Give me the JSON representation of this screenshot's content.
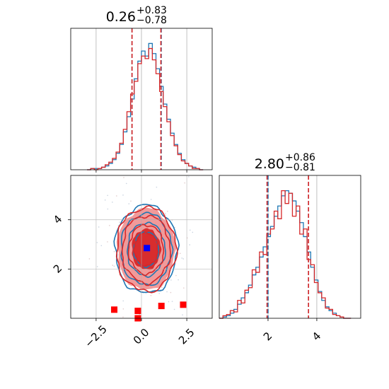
{
  "chart_data": {
    "type": "corner",
    "series": [
      {
        "name": "",
        "color": "#1f77b4"
      },
      {
        "name": "",
        "color": "#d62728"
      }
    ],
    "panels": [
      {
        "id": "hist-x",
        "type": "histogram",
        "title_value": "0.26",
        "title_plus": "+0.83",
        "title_minus": "−0.78",
        "xlim": [
          -3.9,
          3.9
        ],
        "ylim": [
          0,
          1.12
        ],
        "bins_x": [
          -3.0,
          -2.8,
          -2.6,
          -2.4,
          -2.2,
          -2.0,
          -1.8,
          -1.6,
          -1.4,
          -1.2,
          -1.0,
          -0.8,
          -0.6,
          -0.4,
          -0.2,
          0.0,
          0.2,
          0.4,
          0.6,
          0.8,
          1.0,
          1.2,
          1.4,
          1.6,
          1.8,
          2.0,
          2.2,
          2.4,
          2.6,
          2.8,
          3.0,
          3.2,
          3.4
        ],
        "blue_values": [
          0.0,
          0.01,
          0.01,
          0.01,
          0.02,
          0.03,
          0.05,
          0.08,
          0.13,
          0.2,
          0.3,
          0.42,
          0.56,
          0.72,
          0.86,
          0.94,
          0.9,
          1.0,
          0.92,
          0.8,
          0.66,
          0.52,
          0.4,
          0.29,
          0.2,
          0.13,
          0.08,
          0.05,
          0.03,
          0.02,
          0.01,
          0.0
        ],
        "red_values": [
          0.0,
          0.01,
          0.0,
          0.01,
          0.02,
          0.04,
          0.06,
          0.09,
          0.14,
          0.21,
          0.32,
          0.46,
          0.6,
          0.7,
          0.84,
          0.9,
          0.88,
          0.96,
          0.87,
          0.76,
          0.62,
          0.5,
          0.38,
          0.27,
          0.19,
          0.12,
          0.07,
          0.05,
          0.03,
          0.01,
          0.01,
          0.0
        ],
        "quantiles_blue": [
          -0.52,
          1.09
        ],
        "quantiles_red": [
          -0.52,
          1.07
        ]
      },
      {
        "id": "hist-y",
        "type": "histogram",
        "title_value": "2.80",
        "title_plus": "+0.86",
        "title_minus": "−0.81",
        "xlim": [
          0.0,
          5.8
        ],
        "ylim": [
          0,
          1.12
        ],
        "bins_x": [
          0.0,
          0.15,
          0.3,
          0.45,
          0.6,
          0.75,
          0.9,
          1.05,
          1.2,
          1.35,
          1.5,
          1.65,
          1.8,
          1.95,
          2.1,
          2.25,
          2.4,
          2.55,
          2.7,
          2.85,
          3.0,
          3.15,
          3.3,
          3.45,
          3.6,
          3.75,
          3.9,
          4.05,
          4.2,
          4.35,
          4.5,
          4.65,
          4.8,
          4.95,
          5.1,
          5.25,
          5.4
        ],
        "blue_values": [
          0.0,
          0.01,
          0.02,
          0.04,
          0.07,
          0.11,
          0.16,
          0.2,
          0.26,
          0.34,
          0.4,
          0.48,
          0.56,
          0.64,
          0.72,
          0.8,
          0.88,
          0.96,
          1.0,
          0.98,
          0.92,
          0.84,
          0.75,
          0.64,
          0.52,
          0.4,
          0.3,
          0.21,
          0.14,
          0.09,
          0.06,
          0.04,
          0.02,
          0.01,
          0.0,
          0.0
        ],
        "red_values": [
          0.0,
          0.02,
          0.03,
          0.06,
          0.05,
          0.14,
          0.12,
          0.22,
          0.24,
          0.38,
          0.36,
          0.52,
          0.5,
          0.66,
          0.7,
          0.84,
          0.78,
          1.0,
          0.9,
          0.98,
          0.8,
          0.88,
          0.66,
          0.7,
          0.46,
          0.42,
          0.28,
          0.2,
          0.16,
          0.08,
          0.07,
          0.03,
          0.02,
          0.01,
          0.0,
          0.0
        ],
        "quantiles_blue": [
          2.0,
          3.66
        ],
        "quantiles_red": [
          1.96,
          3.66
        ]
      },
      {
        "id": "scatter-xy",
        "type": "contour",
        "xlim": [
          -3.9,
          3.9
        ],
        "ylim": [
          0.0,
          5.8
        ],
        "center": [
          0.26,
          2.8
        ],
        "sigma": [
          0.8,
          0.83
        ],
        "blue_marker": [
          0.3,
          2.85
        ],
        "red_markers": [
          [
            -1.5,
            0.35
          ],
          [
            -0.2,
            0.3
          ],
          [
            1.1,
            0.5
          ],
          [
            2.3,
            0.55
          ],
          [
            -0.2,
            0.0
          ]
        ]
      }
    ],
    "x_ticks_main": [
      "−2.5",
      "0.0",
      "2.5"
    ],
    "x_tick_values_main": [
      -2.5,
      0.0,
      2.5
    ],
    "y_ticks_main": [
      "2",
      "4"
    ],
    "y_tick_values_main": [
      2,
      4
    ],
    "x_ticks_hist_y": [
      "2",
      "4"
    ],
    "x_tick_values_hist_y": [
      2,
      4
    ],
    "grid": true
  }
}
